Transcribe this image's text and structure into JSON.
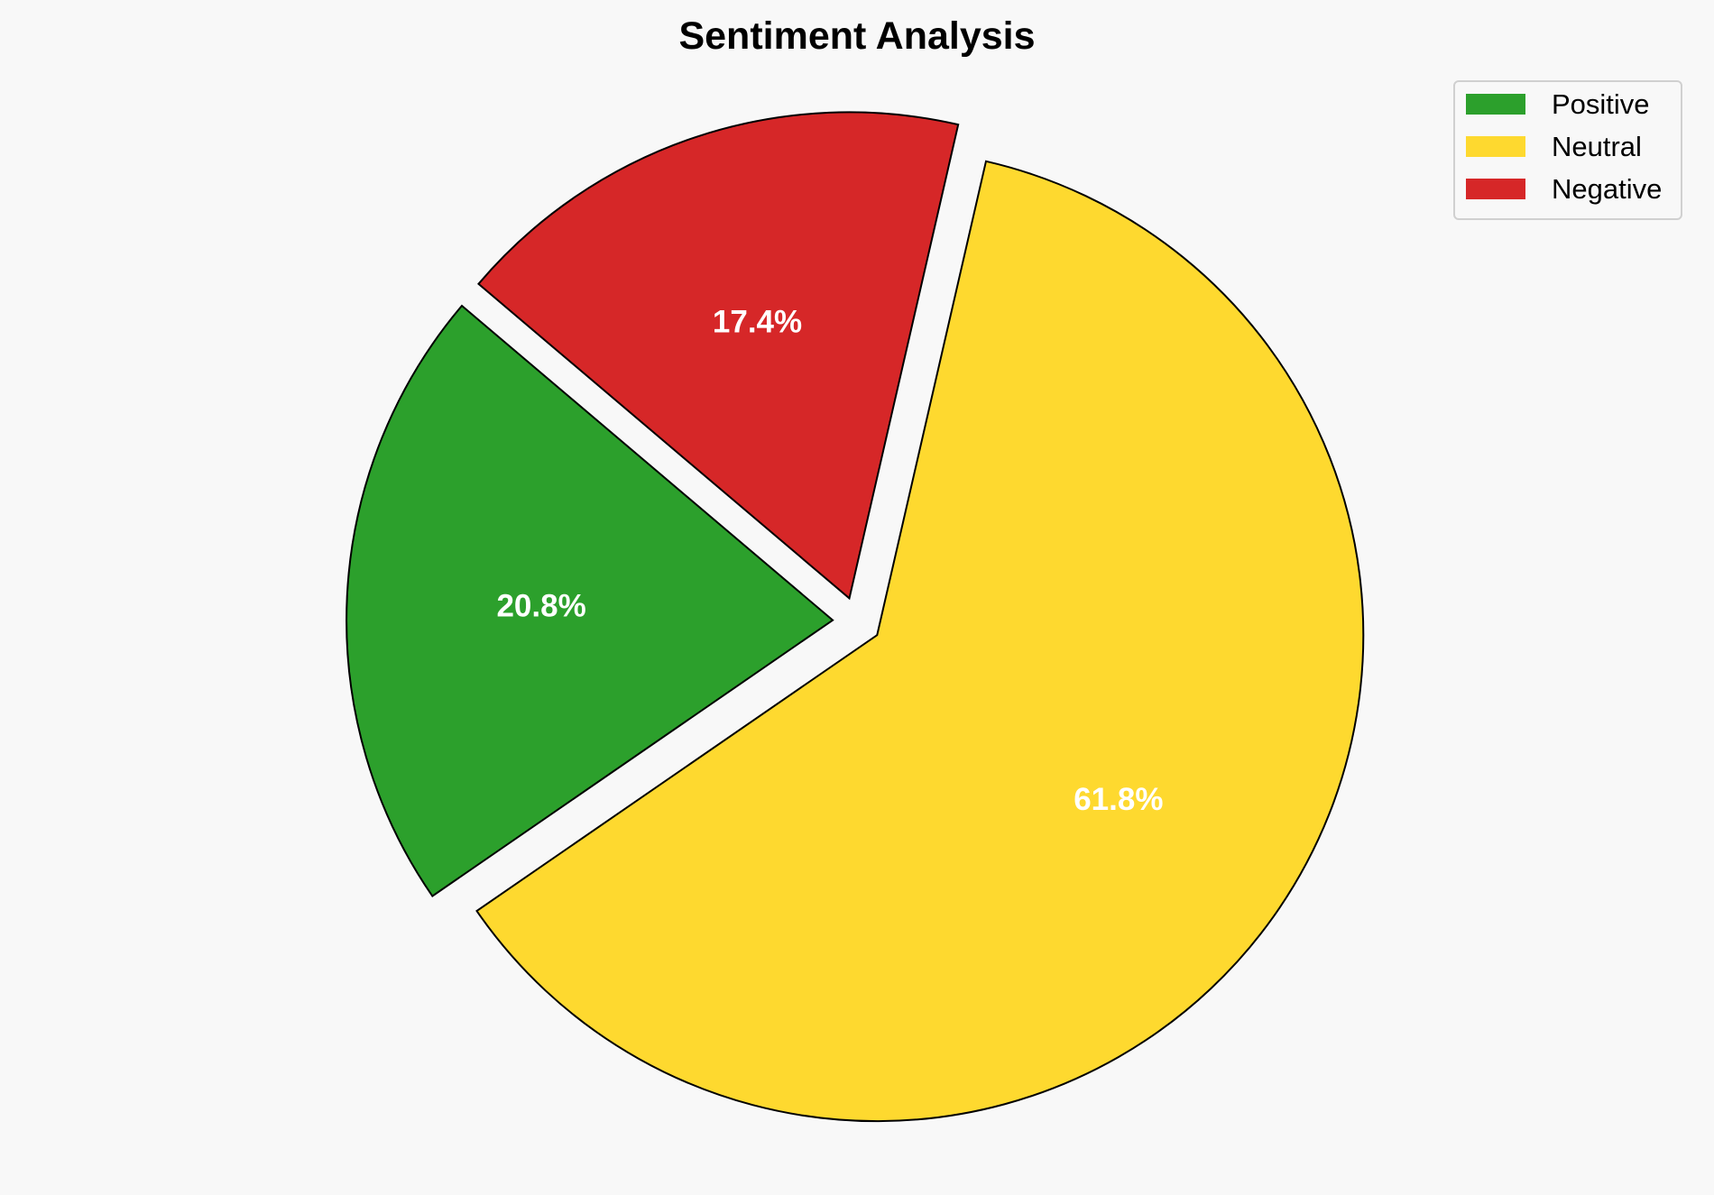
{
  "chart_data": {
    "type": "pie",
    "title": "Sentiment Analysis",
    "categories": [
      "Positive",
      "Neutral",
      "Negative"
    ],
    "values": [
      20.8,
      61.8,
      17.4
    ],
    "labels": [
      "20.8%",
      "61.8%",
      "17.4%"
    ],
    "colors": [
      "#2ca02c",
      "#fed92f",
      "#d62728"
    ],
    "explode": [
      0.05,
      0.05,
      0.05
    ],
    "start_angle_deg": 139.7,
    "direction": "counterclockwise",
    "legend": {
      "placement": "top-right",
      "entries": [
        "Positive",
        "Neutral",
        "Negative"
      ]
    }
  }
}
